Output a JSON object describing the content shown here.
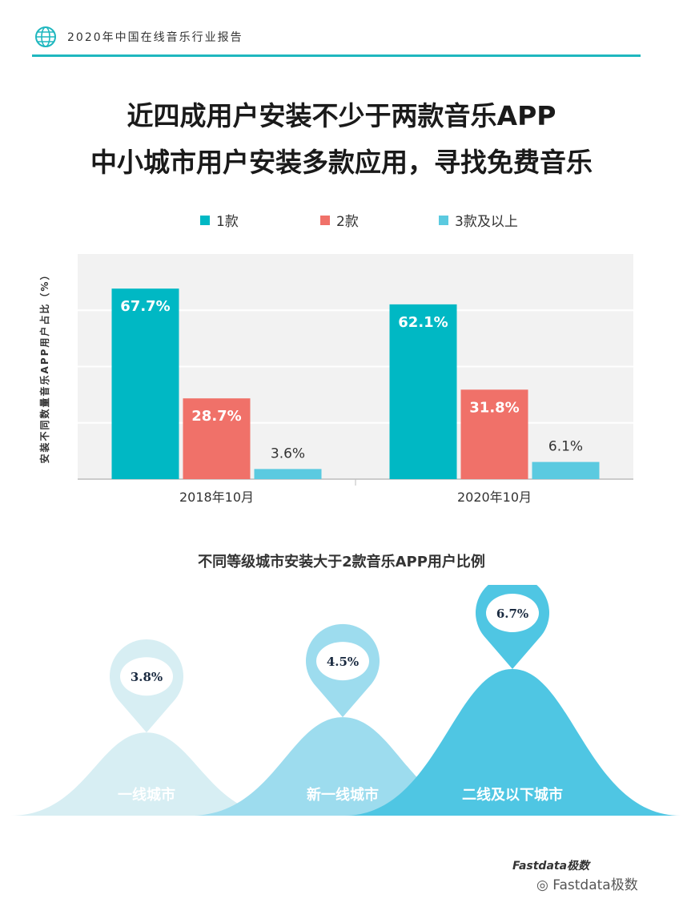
{
  "header": {
    "report_title": "2020年中国在线音乐行业报告"
  },
  "title": {
    "line1": "近四成用户安装不少于两款音乐APP",
    "line2": "中小城市用户安装多款应用，寻找免费音乐"
  },
  "colors": {
    "teal": "#00b8c4",
    "salmon": "#f07169",
    "light_blue": "#5bcae0",
    "accent": "#1fb7bf"
  },
  "chart_data": [
    {
      "type": "bar",
      "categories": [
        "2018年10月",
        "2020年10月"
      ],
      "series": [
        {
          "name": "1款",
          "values": [
            67.7,
            62.1
          ],
          "color": "#00b8c4"
        },
        {
          "name": "2款",
          "values": [
            28.7,
            31.8
          ],
          "color": "#f07169"
        },
        {
          "name": "3款及以上",
          "values": [
            3.6,
            6.1
          ],
          "color": "#5bcae0"
        }
      ],
      "data_labels": [
        [
          "67.7%",
          "62.1%"
        ],
        [
          "28.7%",
          "31.8%"
        ],
        [
          "3.6%",
          "6.1%"
        ]
      ],
      "ylabel": "安装不同数量音乐APP用户占比（%）",
      "ylim": [
        0,
        80
      ],
      "grid": true,
      "legend": "top"
    },
    {
      "type": "area",
      "title": "不同等级城市安装大于2款音乐APP用户比例",
      "categories": [
        "一线城市",
        "新一线城市",
        "二线及以下城市"
      ],
      "values": [
        3.8,
        4.5,
        6.7
      ],
      "labels": [
        "3.8%",
        "4.5%",
        "6.7%"
      ],
      "colors": [
        "#d7eef3",
        "#9ddcee",
        "#4fc6e3"
      ]
    }
  ],
  "footer": {
    "logo": "Fastdata极数",
    "wechat": "Fastdata极数"
  }
}
